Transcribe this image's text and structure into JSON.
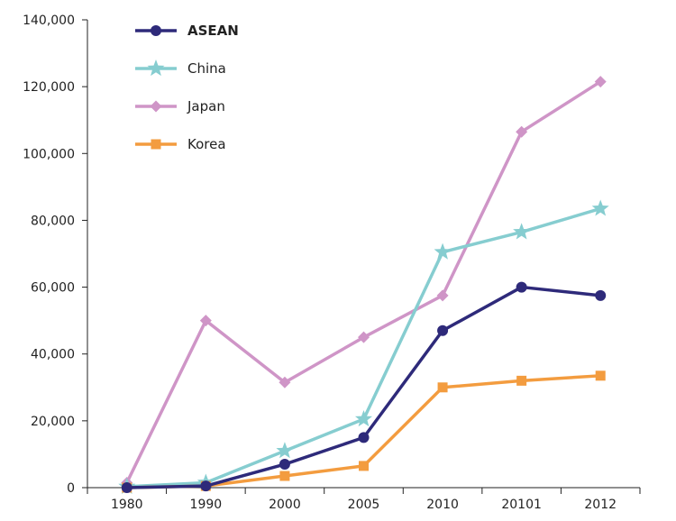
{
  "chart_data": {
    "type": "line",
    "title": "",
    "xlabel": "",
    "ylabel": "",
    "categories": [
      "1980",
      "1990",
      "2000",
      "2005",
      "2010",
      "20101",
      "2012"
    ],
    "ylim": [
      0,
      140000
    ],
    "yticks": [
      0,
      20000,
      40000,
      60000,
      80000,
      100000,
      120000,
      140000
    ],
    "ytick_labels": [
      "0",
      "20,000",
      "40,000",
      "60,000",
      "80,000",
      "100,000",
      "120,000",
      "140,000"
    ],
    "grid": false,
    "legend_position": "top-left",
    "series": [
      {
        "name": "ASEAN",
        "color": "#2e2a7a",
        "marker": "circle",
        "values": [
          0,
          500,
          7000,
          15000,
          47000,
          60000,
          57500
        ]
      },
      {
        "name": "China",
        "color": "#86cdd0",
        "marker": "star",
        "values": [
          300,
          1500,
          11000,
          20500,
          70500,
          76500,
          83500
        ]
      },
      {
        "name": "Japan",
        "color": "#cf95c7",
        "marker": "diamond",
        "values": [
          1500,
          50000,
          31500,
          45000,
          57500,
          106500,
          121500
        ]
      },
      {
        "name": "Korea",
        "color": "#f39c3f",
        "marker": "square",
        "values": [
          0,
          500,
          3500,
          6500,
          30000,
          32000,
          33500
        ]
      }
    ]
  }
}
